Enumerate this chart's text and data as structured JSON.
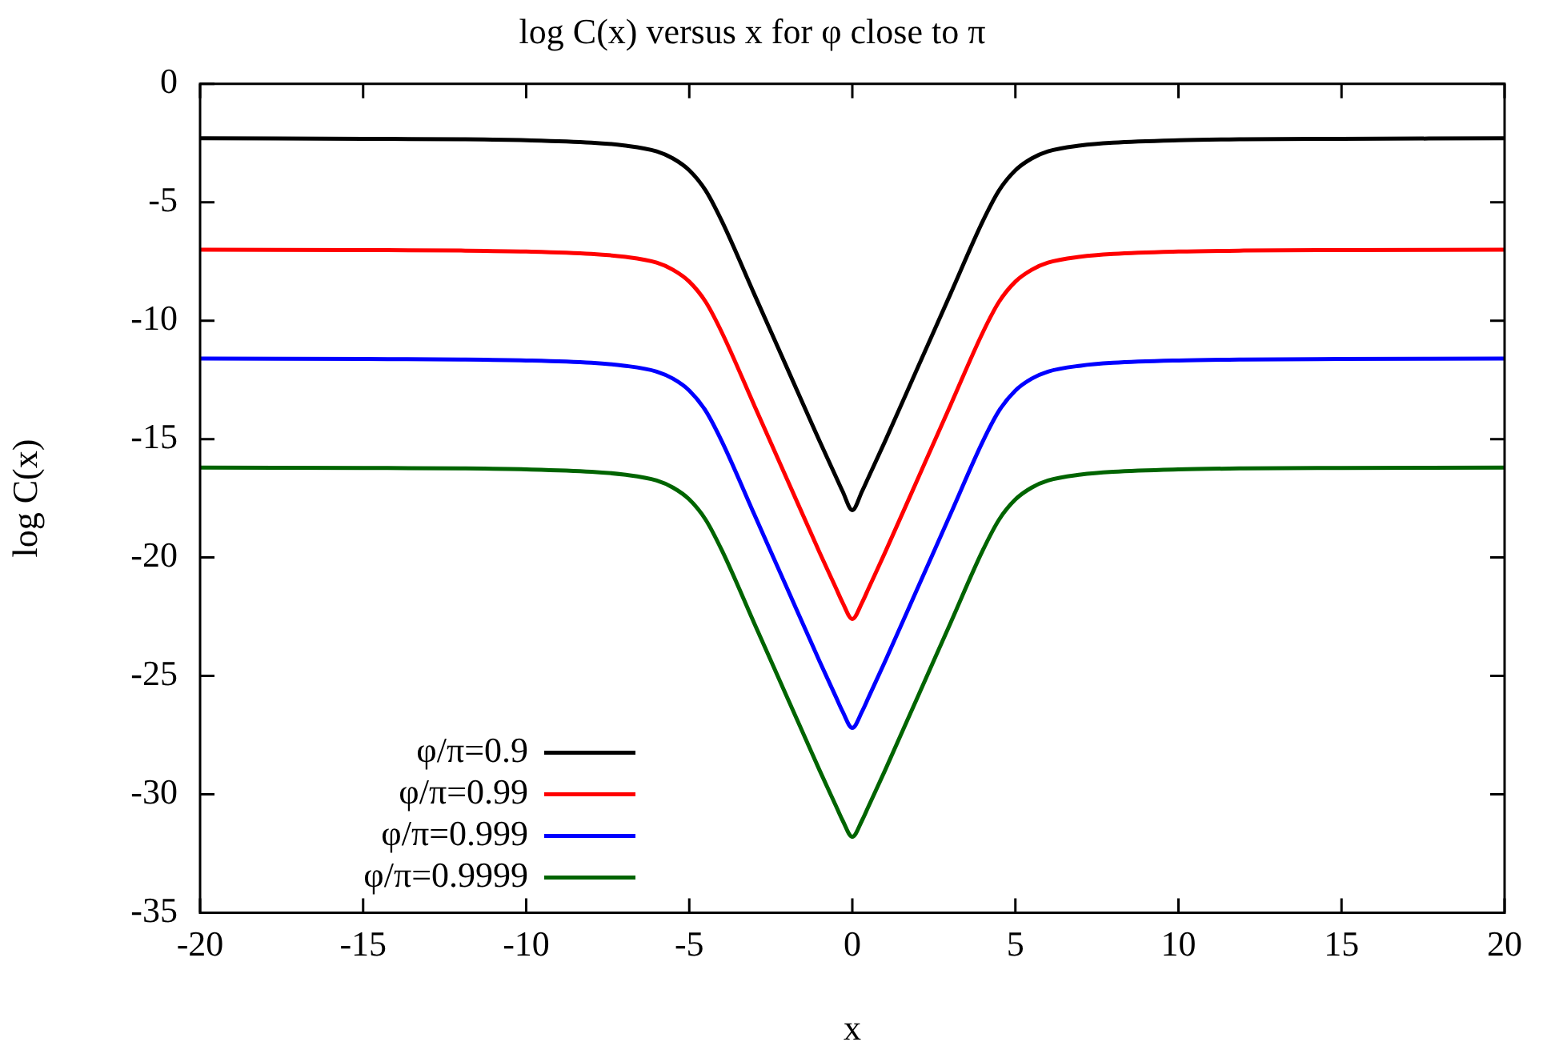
{
  "chart_data": {
    "type": "line",
    "title": "log C(x) versus x for φ close to π",
    "xlabel": "x",
    "ylabel": "log C(x)",
    "x": [
      -20,
      -15,
      -12,
      -10,
      -8,
      -7,
      -6,
      -5.5,
      -5,
      -4.5,
      -4,
      -3,
      -2,
      -1,
      -0.5,
      -0.3,
      0,
      0.3,
      0.5,
      1,
      2,
      3,
      4,
      4.5,
      5,
      5.5,
      6,
      7,
      8,
      10,
      12,
      15,
      20
    ],
    "series": [
      {
        "name": "φ/π=0.9",
        "color": "#000000",
        "values": [
          -2.3,
          -2.32,
          -2.34,
          -2.38,
          -2.48,
          -2.6,
          -2.85,
          -3.15,
          -3.65,
          -4.5,
          -5.8,
          -8.9,
          -12,
          -15.1,
          -16.6,
          -17.2,
          -18,
          -17.2,
          -16.6,
          -15.1,
          -12,
          -8.9,
          -5.8,
          -4.5,
          -3.65,
          -3.15,
          -2.85,
          -2.6,
          -2.48,
          -2.38,
          -2.34,
          -2.32,
          -2.3
        ]
      },
      {
        "name": "φ/π=0.99",
        "color": "#ff0000",
        "values": [
          -7,
          -7.02,
          -7.04,
          -7.08,
          -7.18,
          -7.3,
          -7.55,
          -7.85,
          -8.35,
          -9.2,
          -10.5,
          -13.6,
          -16.7,
          -19.8,
          -21.3,
          -21.9,
          -22.6,
          -21.9,
          -21.3,
          -19.8,
          -16.7,
          -13.6,
          -10.5,
          -9.2,
          -8.35,
          -7.85,
          -7.55,
          -7.3,
          -7.18,
          -7.08,
          -7.04,
          -7.02,
          -7
        ]
      },
      {
        "name": "φ/π=0.999",
        "color": "#0000ff",
        "values": [
          -11.6,
          -11.62,
          -11.64,
          -11.68,
          -11.78,
          -11.9,
          -12.15,
          -12.45,
          -12.95,
          -13.8,
          -15.1,
          -18.2,
          -21.3,
          -24.4,
          -25.9,
          -26.5,
          -27.2,
          -26.5,
          -25.9,
          -24.4,
          -21.3,
          -18.2,
          -15.1,
          -13.8,
          -12.95,
          -12.45,
          -12.15,
          -11.9,
          -11.78,
          -11.68,
          -11.64,
          -11.62,
          -11.6
        ]
      },
      {
        "name": "φ/π=0.9999",
        "color": "#006400",
        "values": [
          -16.2,
          -16.22,
          -16.24,
          -16.28,
          -16.38,
          -16.5,
          -16.75,
          -17.05,
          -17.55,
          -18.4,
          -19.7,
          -22.8,
          -25.9,
          -29,
          -30.5,
          -31.1,
          -31.8,
          -31.1,
          -30.5,
          -29,
          -25.9,
          -22.8,
          -19.7,
          -18.4,
          -17.55,
          -17.05,
          -16.75,
          -16.5,
          -16.38,
          -16.28,
          -16.24,
          -16.22,
          -16.2
        ]
      }
    ],
    "xlim": [
      -20,
      20
    ],
    "xticks": [
      -20,
      -15,
      -10,
      -5,
      0,
      5,
      10,
      15,
      20
    ],
    "ylim": [
      -35,
      0
    ],
    "yticks": [
      -35,
      -30,
      -25,
      -20,
      -15,
      -10,
      -5,
      0
    ],
    "grid": false,
    "legend": "bottom left",
    "marker": "none",
    "line_style": "solid"
  }
}
